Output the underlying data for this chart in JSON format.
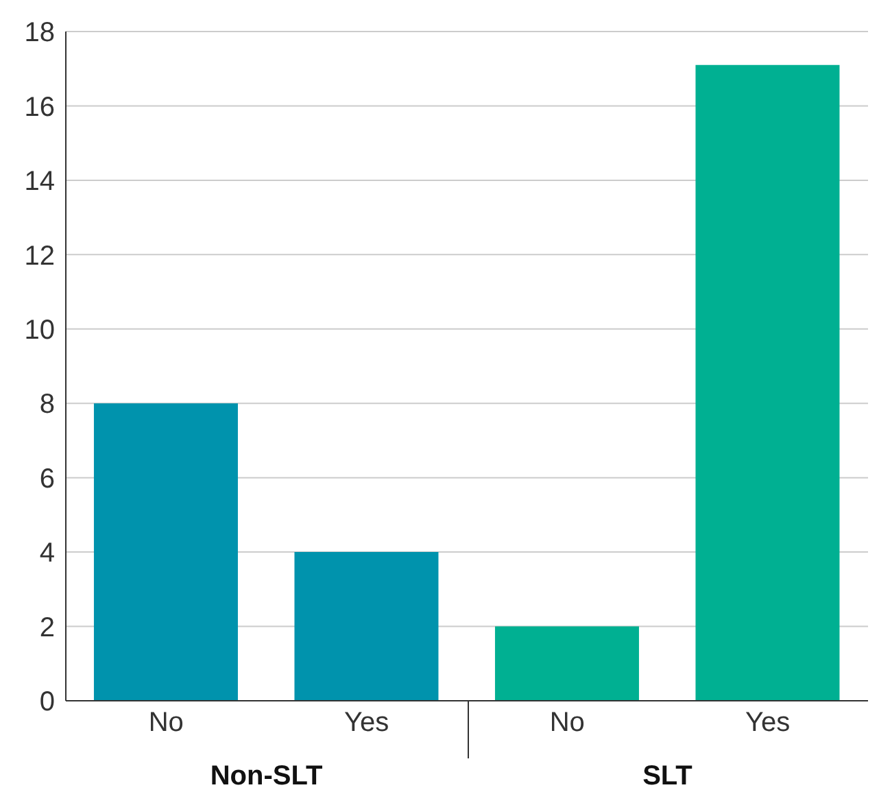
{
  "chart_data": {
    "type": "bar",
    "categories": [
      "No",
      "Yes",
      "No",
      "Yes"
    ],
    "series": [
      {
        "name": "Non-SLT",
        "color": "#0093ad",
        "values": [
          8,
          4,
          null,
          null
        ]
      },
      {
        "name": "SLT",
        "color": "#00b092",
        "values": [
          null,
          null,
          2,
          17.1
        ]
      }
    ],
    "ylim": [
      0,
      18
    ],
    "yticks": [
      0,
      2,
      4,
      6,
      8,
      10,
      12,
      14,
      16,
      18
    ],
    "grid": "y"
  }
}
